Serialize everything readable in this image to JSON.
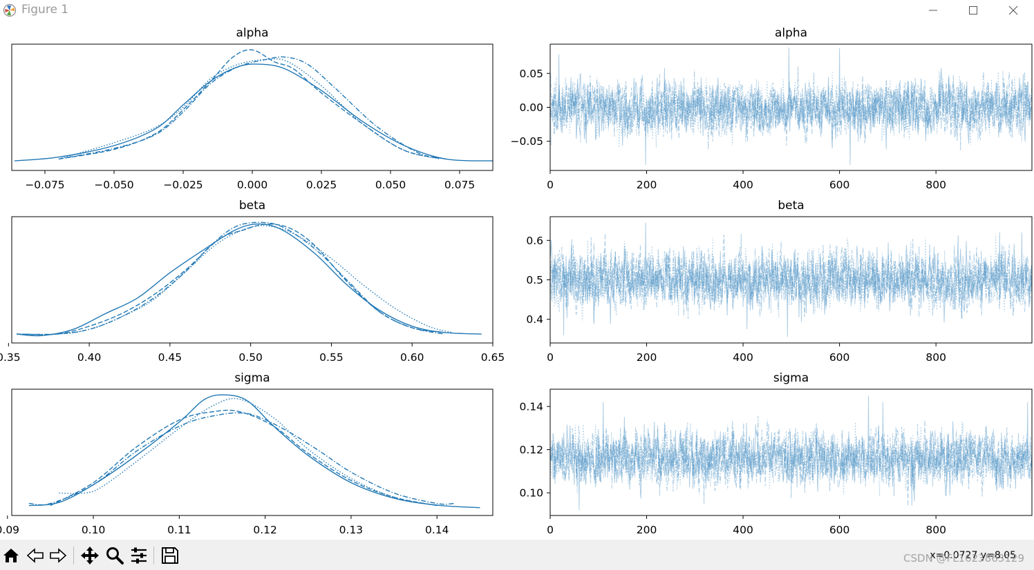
{
  "window": {
    "title": "Figure 1"
  },
  "toolbar": {
    "buttons": [
      "home-icon",
      "back-icon",
      "forward-icon",
      "pan-icon",
      "zoom-icon",
      "configure-icon",
      "save-icon"
    ],
    "coords": "x=0.0727 y=8.05",
    "watermark": "CSDN @FL1623863129"
  },
  "colors": {
    "line": "#1f77b4",
    "trace": "#4a90c4"
  },
  "chart_data": [
    {
      "type": "line",
      "title": "alpha",
      "xlim": [
        -0.087,
        0.087
      ],
      "xticks": [
        -0.075,
        -0.05,
        -0.025,
        0.0,
        0.025,
        0.05,
        0.075
      ],
      "xtick_labels": [
        "−0.075",
        "−0.050",
        "−0.025",
        "0.000",
        "0.025",
        "0.050",
        "0.075"
      ],
      "yticks_shown": false,
      "series": [
        {
          "style": "solid",
          "x": [
            -0.086,
            -0.07,
            -0.05,
            -0.035,
            -0.025,
            -0.015,
            -0.005,
            0.003,
            0.012,
            0.025,
            0.04,
            0.055,
            0.07,
            0.087
          ],
          "y": [
            0.8,
            1.6,
            4.0,
            7.5,
            12.5,
            17.5,
            20.5,
            21.0,
            20.0,
            15.5,
            9.0,
            4.0,
            1.2,
            0.8
          ]
        },
        {
          "style": "dashed",
          "x": [
            -0.07,
            -0.05,
            -0.035,
            -0.025,
            -0.015,
            -0.007,
            0.0,
            0.008,
            0.015,
            0.025,
            0.04,
            0.055,
            0.07
          ],
          "y": [
            1.2,
            3.2,
            6.5,
            11.5,
            17.5,
            22.5,
            24.0,
            21.5,
            20.0,
            15.0,
            8.5,
            3.0,
            1.2
          ]
        },
        {
          "style": "dotted",
          "x": [
            -0.07,
            -0.05,
            -0.035,
            -0.025,
            -0.015,
            -0.005,
            0.005,
            0.013,
            0.025,
            0.04,
            0.055,
            0.068
          ],
          "y": [
            1.2,
            4.6,
            7.8,
            12.0,
            18.0,
            21.0,
            22.0,
            21.5,
            16.5,
            8.5,
            3.0,
            1.2
          ]
        },
        {
          "style": "dashdot",
          "x": [
            -0.07,
            -0.05,
            -0.035,
            -0.025,
            -0.015,
            -0.005,
            0.005,
            0.012,
            0.02,
            0.03,
            0.045,
            0.06,
            0.07
          ],
          "y": [
            1.2,
            3.4,
            6.3,
            11.0,
            17.0,
            20.5,
            22.0,
            22.5,
            21.0,
            16.0,
            8.0,
            2.5,
            1.2
          ]
        }
      ]
    },
    {
      "type": "line",
      "title": "alpha",
      "xlim": [
        0,
        999
      ],
      "ylim": [
        -0.093,
        0.093
      ],
      "xticks": [
        0,
        200,
        400,
        600,
        800
      ],
      "yticks": [
        -0.05,
        0.0,
        0.05
      ],
      "ytick_labels": [
        "−0.05",
        "0.00",
        "0.05"
      ],
      "trace": {
        "center": 0.0,
        "sd": 0.025,
        "n": 1000,
        "spikes": [
          [
            18,
            0.078
          ],
          [
            198,
            -0.085
          ],
          [
            495,
            0.088
          ],
          [
            600,
            0.087
          ],
          [
            622,
            -0.085
          ]
        ]
      }
    },
    {
      "type": "line",
      "title": "beta",
      "xlim": [
        0.352,
        0.65
      ],
      "xticks": [
        0.35,
        0.4,
        0.45,
        0.5,
        0.55,
        0.6,
        0.65
      ],
      "xtick_labels": [
        "0.35",
        "0.40",
        "0.45",
        "0.50",
        "0.55",
        "0.60",
        "0.65"
      ],
      "yticks_shown": false,
      "series": [
        {
          "style": "solid",
          "x": [
            0.355,
            0.37,
            0.39,
            0.41,
            0.43,
            0.45,
            0.47,
            0.49,
            0.505,
            0.52,
            0.54,
            0.56,
            0.58,
            0.6,
            0.62,
            0.643
          ],
          "y": [
            0.2,
            0.1,
            0.5,
            1.5,
            2.5,
            4.1,
            5.5,
            6.8,
            7.2,
            6.8,
            5.3,
            3.3,
            1.7,
            0.7,
            0.3,
            0.2
          ]
        },
        {
          "style": "dashed",
          "x": [
            0.355,
            0.38,
            0.4,
            0.42,
            0.44,
            0.46,
            0.48,
            0.495,
            0.51,
            0.525,
            0.54,
            0.56,
            0.58,
            0.6,
            0.62
          ],
          "y": [
            0.2,
            0.2,
            0.7,
            1.5,
            2.7,
            4.3,
            6.2,
            6.8,
            7.2,
            6.9,
            5.8,
            3.5,
            1.6,
            0.6,
            0.3
          ]
        },
        {
          "style": "dotted",
          "x": [
            0.355,
            0.38,
            0.4,
            0.42,
            0.44,
            0.46,
            0.48,
            0.5,
            0.515,
            0.53,
            0.55,
            0.57,
            0.59,
            0.61,
            0.625
          ],
          "y": [
            0.2,
            0.2,
            0.5,
            1.3,
            2.4,
            4.2,
            6.0,
            7.0,
            7.0,
            6.4,
            5.0,
            3.3,
            1.8,
            0.7,
            0.3
          ]
        },
        {
          "style": "dashdot",
          "x": [
            0.355,
            0.38,
            0.4,
            0.42,
            0.44,
            0.46,
            0.475,
            0.49,
            0.505,
            0.52,
            0.54,
            0.56,
            0.58,
            0.6,
            0.62
          ],
          "y": [
            0.2,
            0.2,
            0.5,
            1.3,
            2.5,
            4.2,
            5.8,
            7.0,
            7.3,
            7.0,
            5.6,
            3.6,
            1.6,
            0.6,
            0.2
          ]
        }
      ]
    },
    {
      "type": "line",
      "title": "beta",
      "xlim": [
        0,
        999
      ],
      "ylim": [
        0.34,
        0.66
      ],
      "xticks": [
        0,
        200,
        400,
        600,
        800
      ],
      "yticks": [
        0.4,
        0.5,
        0.6
      ],
      "ytick_labels": [
        "0.4",
        "0.5",
        "0.6"
      ],
      "trace": {
        "center": 0.5,
        "sd": 0.045,
        "n": 1000,
        "spikes": [
          [
            28,
            0.36
          ],
          [
            198,
            0.645
          ],
          [
            408,
            0.375
          ],
          [
            492,
            0.355
          ],
          [
            932,
            0.62
          ],
          [
            978,
            0.62
          ]
        ]
      }
    },
    {
      "type": "line",
      "title": "sigma",
      "xlim": [
        0.0905,
        0.1465
      ],
      "xticks": [
        0.09,
        0.1,
        0.11,
        0.12,
        0.13,
        0.14
      ],
      "xtick_labels": [
        "0.09",
        "0.10",
        "0.11",
        "0.12",
        "0.13",
        "0.14"
      ],
      "yticks_shown": false,
      "series": [
        {
          "style": "solid",
          "x": [
            0.0925,
            0.096,
            0.1,
            0.105,
            0.11,
            0.113,
            0.1155,
            0.118,
            0.121,
            0.125,
            0.13,
            0.135,
            0.14,
            0.145
          ],
          "y": [
            2.0,
            3.5,
            12.0,
            26.0,
            42.0,
            53.0,
            55.0,
            52.0,
            40.0,
            26.0,
            13.0,
            5.5,
            2.2,
            1.0
          ]
        },
        {
          "style": "dashed",
          "x": [
            0.095,
            0.1,
            0.105,
            0.11,
            0.114,
            0.117,
            0.121,
            0.125,
            0.13,
            0.135,
            0.14
          ],
          "y": [
            2.0,
            13.0,
            30.0,
            43.0,
            47.0,
            47.0,
            40.0,
            27.0,
            14.0,
            6.0,
            2.0
          ]
        },
        {
          "style": "dotted",
          "x": [
            0.096,
            0.099,
            0.101,
            0.105,
            0.11,
            0.114,
            0.117,
            0.121,
            0.125,
            0.13,
            0.135,
            0.14
          ],
          "y": [
            8.0,
            8.0,
            11.0,
            23.0,
            39.0,
            50.0,
            53.0,
            44.0,
            29.0,
            15.0,
            6.0,
            2.0
          ]
        },
        {
          "style": "dashdot",
          "x": [
            0.0925,
            0.095,
            0.1,
            0.105,
            0.11,
            0.114,
            0.118,
            0.122,
            0.126,
            0.13,
            0.135,
            0.14,
            0.142
          ],
          "y": [
            3.0,
            3.0,
            12.0,
            28.0,
            40.0,
            45.0,
            46.0,
            39.0,
            29.0,
            18.0,
            8.0,
            3.0,
            3.0
          ]
        }
      ]
    },
    {
      "type": "line",
      "title": "sigma",
      "xlim": [
        0,
        999
      ],
      "ylim": [
        0.0895,
        0.148
      ],
      "xticks": [
        0,
        200,
        400,
        600,
        800
      ],
      "yticks": [
        0.1,
        0.12,
        0.14
      ],
      "ytick_labels": [
        "0.10",
        "0.12",
        "0.14"
      ],
      "trace": {
        "center": 0.116,
        "sd": 0.008,
        "n": 1000,
        "spikes": [
          [
            60,
            0.092
          ],
          [
            110,
            0.142
          ],
          [
            660,
            0.145
          ],
          [
            690,
            0.142
          ],
          [
            750,
            0.094
          ],
          [
            990,
            0.142
          ]
        ]
      }
    }
  ]
}
